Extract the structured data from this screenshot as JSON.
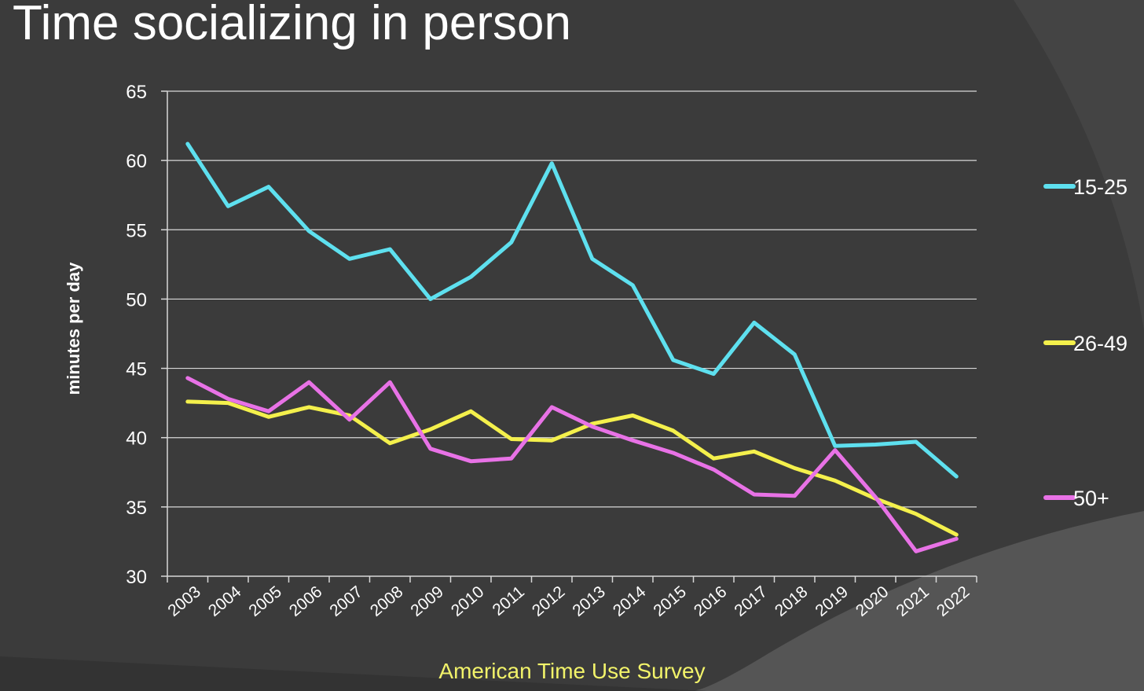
{
  "title": "Time socializing in person",
  "source": "American Time Use Survey",
  "colors": {
    "background": "#3b3b3b",
    "grid": "#d8d8d8",
    "text": "#ffffff",
    "source_text": "#f2f36a"
  },
  "chart_data": {
    "type": "line",
    "title": "Time socializing in person",
    "xlabel": "",
    "ylabel": "minutes per day",
    "ylim": [
      30,
      65
    ],
    "yticks": [
      30,
      35,
      40,
      45,
      50,
      55,
      60,
      65
    ],
    "grid": true,
    "legend_position": "right",
    "x": [
      "2003",
      "2004",
      "2005",
      "2006",
      "2007",
      "2008",
      "2009",
      "2010",
      "2011",
      "2012",
      "2013",
      "2014",
      "2015",
      "2016",
      "2017",
      "2018",
      "2019",
      "2020",
      "2021",
      "2022"
    ],
    "series": [
      {
        "name": "15-25",
        "color": "#5ee0ef",
        "values": [
          61.2,
          56.7,
          58.1,
          54.9,
          52.9,
          53.6,
          50.0,
          51.6,
          54.1,
          59.8,
          52.9,
          51.0,
          45.6,
          44.6,
          48.3,
          46.0,
          39.4,
          39.5,
          39.7,
          37.2
        ]
      },
      {
        "name": "26-49",
        "color": "#f4f04c",
        "values": [
          42.6,
          42.5,
          41.5,
          42.2,
          41.6,
          39.6,
          40.6,
          41.9,
          39.9,
          39.8,
          41.0,
          41.6,
          40.5,
          38.5,
          39.0,
          37.8,
          36.9,
          35.6,
          34.5,
          33.0
        ]
      },
      {
        "name": "50+",
        "color": "#e872e6",
        "values": [
          44.3,
          42.8,
          41.9,
          44.0,
          41.3,
          44.0,
          39.2,
          38.3,
          38.5,
          42.2,
          40.8,
          39.8,
          38.9,
          37.7,
          35.9,
          35.8,
          39.1,
          35.7,
          31.8,
          32.7
        ]
      }
    ]
  }
}
